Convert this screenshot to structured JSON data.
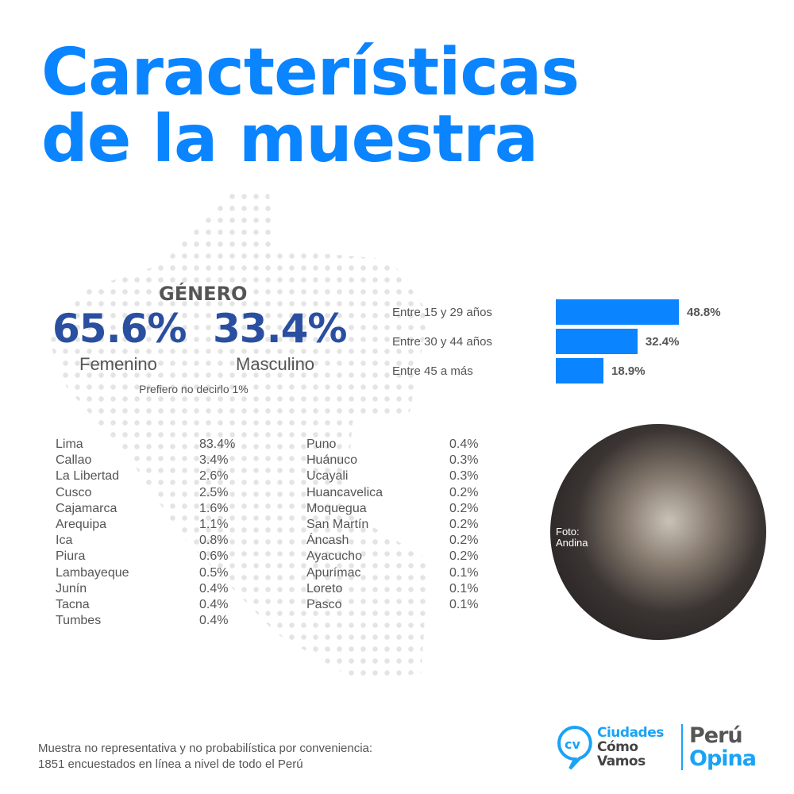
{
  "title": {
    "line1": "Características",
    "line2": "de la muestra"
  },
  "gender": {
    "heading": "GÉNERO",
    "female_pct": "65.6%",
    "female_label": "Femenino",
    "male_pct": "33.4%",
    "male_label": "Masculino",
    "other": "Prefiero no decirlo 1%"
  },
  "chart_data": {
    "type": "bar",
    "orientation": "horizontal",
    "categories": [
      "Entre 15 y 29 años",
      "Entre 30 y 44 años",
      "Entre 45 a más"
    ],
    "values": [
      48.8,
      32.4,
      18.9
    ],
    "labels": [
      "48.8%",
      "32.4%",
      "18.9%"
    ],
    "color": "#0a84ff"
  },
  "regions_col1": [
    [
      "Lima",
      "83.4%"
    ],
    [
      "Callao",
      "3.4%"
    ],
    [
      "La Libertad",
      "2.6%"
    ],
    [
      "Cusco",
      "2.5%"
    ],
    [
      "Cajamarca",
      "1.6%"
    ],
    [
      "Arequipa",
      "1.1%"
    ],
    [
      "Ica",
      "0.8%"
    ],
    [
      "Piura",
      "0.6%"
    ],
    [
      "Lambayeque",
      "0.5%"
    ],
    [
      "Junín",
      "0.4%"
    ],
    [
      "Tacna",
      "0.4%"
    ],
    [
      "Tumbes",
      "0.4%"
    ]
  ],
  "regions_col2": [
    [
      "Puno",
      "0.4%"
    ],
    [
      "Huánuco",
      "0.3%"
    ],
    [
      "Ucayali",
      "0.3%"
    ],
    [
      "Huancavelica",
      "0.2%"
    ],
    [
      "Moquegua",
      "0.2%"
    ],
    [
      "San Martín",
      "0.2%"
    ],
    [
      "Áncash",
      "0.2%"
    ],
    [
      "Ayacucho",
      "0.2%"
    ],
    [
      "Apurímac",
      "0.1%"
    ],
    [
      "Loreto",
      "0.1%"
    ],
    [
      "Pasco",
      "0.1%"
    ]
  ],
  "photo": {
    "credit": "Foto: Andina"
  },
  "footer": {
    "line1": "Muestra no representativa y no probabilística por conveniencia:",
    "line2": "1851 encuestados en línea a nivel de todo el Perú"
  },
  "logos": {
    "ccv1": "Ciudades",
    "ccv2": "Cómo",
    "ccv3": "Vamos",
    "po1": "Perú",
    "po2": "Opina"
  },
  "colors": {
    "accent": "#0a84ff",
    "dark_blue": "#2a4fa0",
    "text": "#555555"
  }
}
